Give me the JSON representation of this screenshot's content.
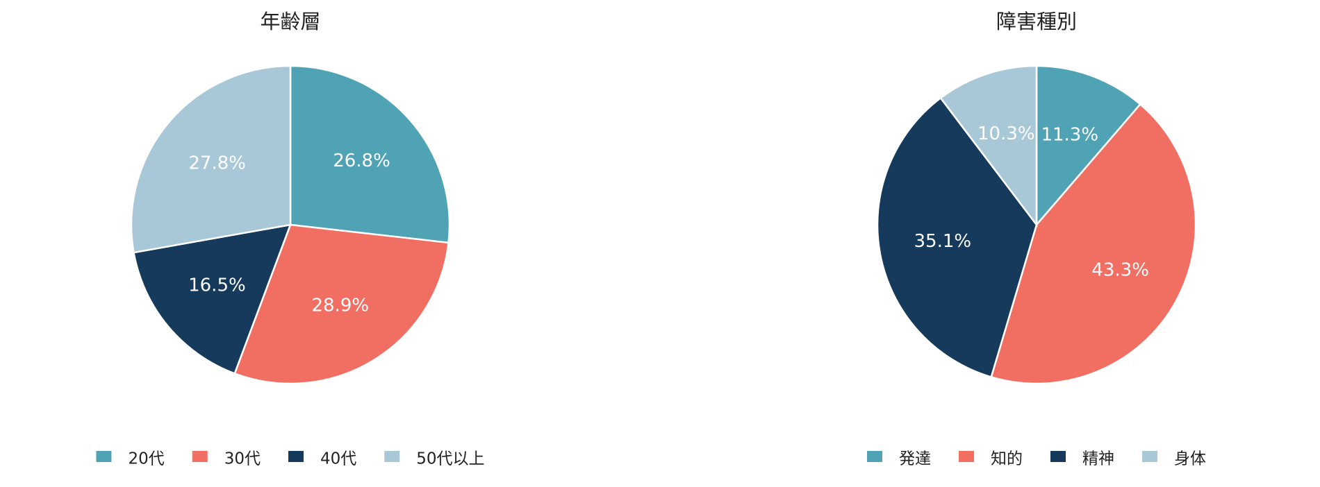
{
  "chart_data": [
    {
      "type": "pie",
      "title": "年齢層",
      "categories": [
        "20代",
        "30代",
        "40代",
        "50代以上"
      ],
      "values": [
        26.8,
        28.9,
        16.5,
        27.8
      ],
      "value_labels": [
        "26.8%",
        "28.9%",
        "16.5%",
        "27.8%"
      ],
      "colors": [
        "#4fa3b5",
        "#f06e62",
        "#153a5b",
        "#a8c8d8"
      ],
      "legend": "bottom"
    },
    {
      "type": "pie",
      "title": "障害種別",
      "categories": [
        "発達",
        "知的",
        "精神",
        "身体"
      ],
      "values": [
        11.3,
        43.3,
        35.1,
        10.3
      ],
      "value_labels": [
        "11.3%",
        "43.3%",
        "35.1%",
        "10.3%"
      ],
      "colors": [
        "#4fa3b5",
        "#f06e62",
        "#153a5b",
        "#a8c8d8"
      ],
      "legend": "bottom"
    }
  ]
}
